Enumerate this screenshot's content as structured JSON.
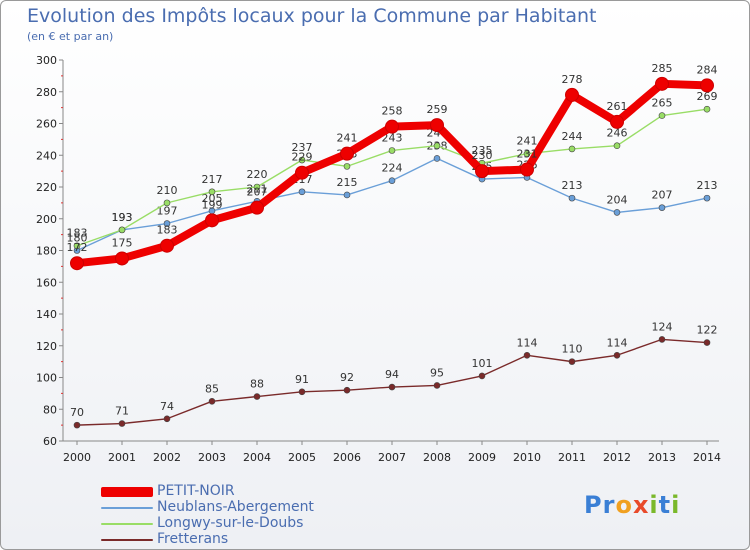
{
  "header": {
    "title": "Evolution des Impôts locaux pour la Commune par Habitant",
    "subtitle": "(en € et par an)"
  },
  "logo": {
    "letters": [
      "P",
      "r",
      "o",
      "x",
      "i",
      "t",
      "i"
    ],
    "colors": [
      "#3a7fd5",
      "#3a7fd5",
      "#f0a020",
      "#e84a2a",
      "#7ab82a",
      "#3a7fd5",
      "#7ab82a"
    ]
  },
  "chart_data": {
    "type": "line",
    "title": "Evolution des Impôts locaux pour la Commune par Habitant",
    "subtitle": "(en € et par an)",
    "x": [
      "2000",
      "2001",
      "2002",
      "2003",
      "2004",
      "2005",
      "2006",
      "2007",
      "2008",
      "2009",
      "2010",
      "2011",
      "2012",
      "2013",
      "2014"
    ],
    "ylim": [
      60,
      300
    ],
    "yticks": [
      60,
      80,
      100,
      120,
      140,
      160,
      180,
      200,
      220,
      240,
      260,
      280,
      300
    ],
    "grid": false,
    "legend_position": "bottom-left",
    "series": [
      {
        "name": "Neublans-Abergement",
        "color": "#6a9fd8",
        "values": [
          180,
          193,
          197,
          205,
          211,
          217,
          215,
          224,
          238,
          225,
          226,
          213,
          204,
          207,
          213
        ],
        "labels": [
          "180",
          "193",
          "197",
          "205",
          "211",
          "217",
          "215",
          "224",
          "238",
          "225",
          "226",
          "213",
          "204",
          "207",
          "213"
        ]
      },
      {
        "name": "Longwy-sur-le-Doubs",
        "color": "#99dd66",
        "values": [
          183,
          193,
          210,
          217,
          220,
          237,
          233,
          243,
          246,
          235,
          241,
          244,
          246,
          265,
          269
        ],
        "labels": [
          "183",
          "193",
          "210",
          "217",
          "220",
          "237",
          "233",
          "243",
          "246",
          "235",
          "241",
          "244",
          "246",
          "265",
          "269"
        ]
      },
      {
        "name": "Fretterans",
        "color": "#7a2a2a",
        "values": [
          70,
          71,
          74,
          85,
          88,
          91,
          92,
          94,
          95,
          101,
          114,
          110,
          114,
          124,
          122
        ],
        "labels": [
          "70",
          "71",
          "74",
          "85",
          "88",
          "91",
          "92",
          "94",
          "95",
          "101",
          "114",
          "110",
          "114",
          "124",
          "122"
        ]
      },
      {
        "name": "PETIT-NOIR",
        "color": "#ee0000",
        "values": [
          172,
          175,
          183,
          199,
          207,
          229,
          241,
          258,
          259,
          230,
          231,
          278,
          261,
          285,
          284
        ],
        "labels": [
          "172",
          "175",
          "183",
          "199",
          "207",
          "229",
          "241",
          "258",
          "259",
          "230",
          "231",
          "278",
          "261",
          "285",
          "284"
        ]
      }
    ],
    "legend": [
      "PETIT-NOIR",
      "Neublans-Abergement",
      "Longwy-sur-le-Doubs",
      "Fretterans"
    ]
  }
}
